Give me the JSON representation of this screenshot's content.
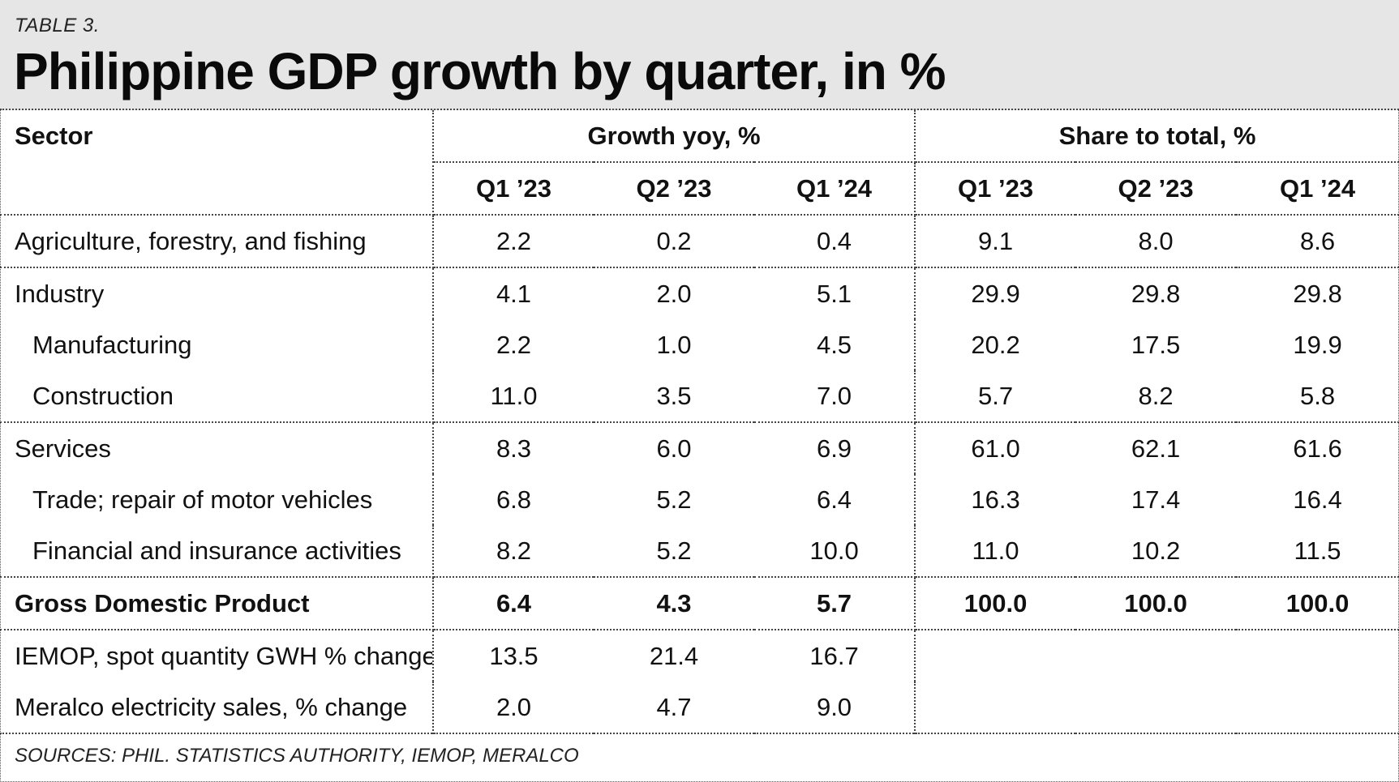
{
  "header": {
    "table_label": "TABLE 3.",
    "title": "Philippine GDP growth by quarter, in %"
  },
  "table": {
    "sector_header": "Sector",
    "group_headers": [
      "Growth yoy, %",
      "Share to total, %"
    ],
    "quarter_headers": [
      "Q1 ’23",
      "Q2 ’23",
      "Q1 ’24",
      "Q1 ’23",
      "Q2 ’23",
      "Q1 ’24"
    ],
    "rows": [
      {
        "label": "Agriculture, forestry, and fishing",
        "values": [
          "2.2",
          "0.2",
          "0.4",
          "9.1",
          "8.0",
          "8.6"
        ]
      },
      {
        "label": "Industry",
        "values": [
          "4.1",
          "2.0",
          "5.1",
          "29.9",
          "29.8",
          "29.8"
        ]
      },
      {
        "label": "Manufacturing",
        "values": [
          "2.2",
          "1.0",
          "4.5",
          "20.2",
          "17.5",
          "19.9"
        ]
      },
      {
        "label": "Construction",
        "values": [
          "11.0",
          "3.5",
          "7.0",
          "5.7",
          "8.2",
          "5.8"
        ]
      },
      {
        "label": "Services",
        "values": [
          "8.3",
          "6.0",
          "6.9",
          "61.0",
          "62.1",
          "61.6"
        ]
      },
      {
        "label": "Trade; repair of motor vehicles",
        "values": [
          "6.8",
          "5.2",
          "6.4",
          "16.3",
          "17.4",
          "16.4"
        ]
      },
      {
        "label": "Financial and insurance activities",
        "values": [
          "8.2",
          "5.2",
          "10.0",
          "11.0",
          "10.2",
          "11.5"
        ]
      },
      {
        "label": "Gross Domestic Product",
        "values": [
          "6.4",
          "4.3",
          "5.7",
          "100.0",
          "100.0",
          "100.0"
        ]
      },
      {
        "label": "IEMOP, spot quantity GWH % change",
        "values": [
          "13.5",
          "21.4",
          "16.7",
          "",
          "",
          ""
        ]
      },
      {
        "label": "Meralco electricity sales, % change",
        "values": [
          "2.0",
          "4.7",
          "9.0",
          "",
          "",
          ""
        ]
      }
    ]
  },
  "sources": "SOURCES: PHIL. STATISTICS AUTHORITY, IEMOP, MERALCO"
}
